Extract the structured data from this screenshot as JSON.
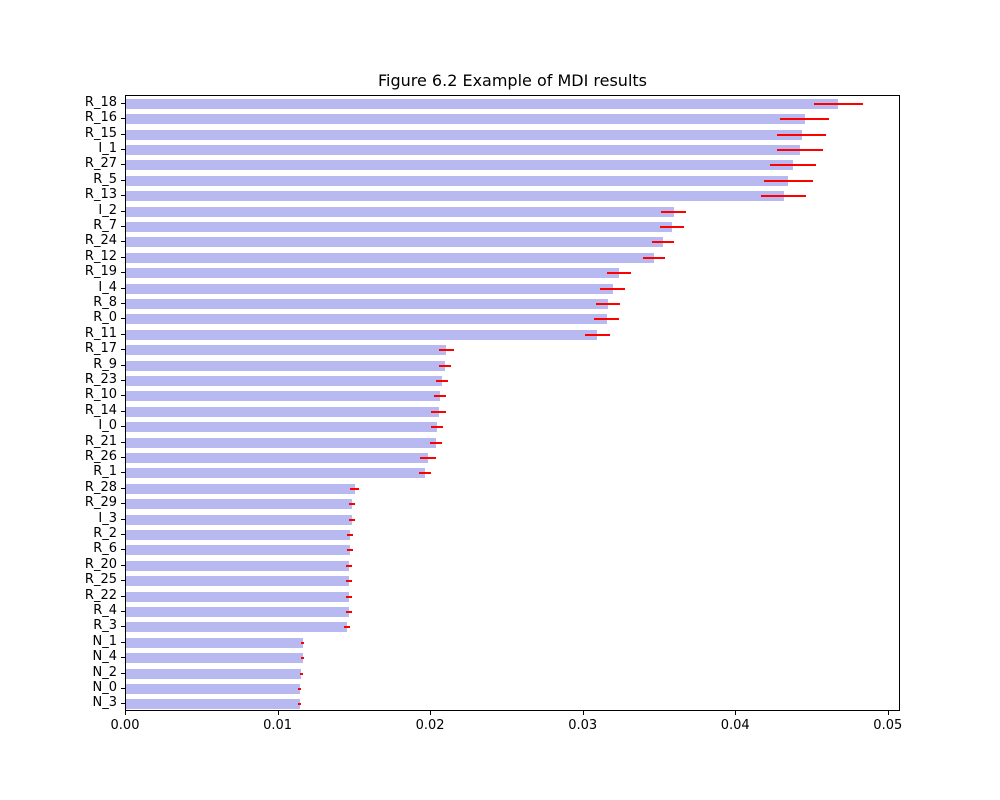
{
  "chart_data": {
    "type": "bar",
    "orientation": "horizontal",
    "title": "Figure 6.2 Example of MDI results",
    "xlabel": "",
    "ylabel": "",
    "grid": false,
    "legend": null,
    "xlim": [
      0,
      0.0508
    ],
    "xticks": [
      0.0,
      0.01,
      0.02,
      0.03,
      0.04,
      0.05
    ],
    "xtick_labels": [
      "0.00",
      "0.01",
      "0.02",
      "0.03",
      "0.04",
      "0.05"
    ],
    "bar_color": "#b9b9f2",
    "error_color": "#ff0000",
    "categories": [
      "R_18",
      "R_16",
      "R_15",
      "I_1",
      "R_27",
      "R_5",
      "R_13",
      "I_2",
      "R_7",
      "R_24",
      "R_12",
      "R_19",
      "I_4",
      "R_8",
      "R_0",
      "R_11",
      "R_17",
      "R_9",
      "R_23",
      "R_10",
      "R_14",
      "I_0",
      "R_21",
      "R_26",
      "R_1",
      "R_28",
      "R_29",
      "I_3",
      "R_2",
      "R_6",
      "R_20",
      "R_25",
      "R_22",
      "R_4",
      "R_3",
      "N_1",
      "N_4",
      "N_2",
      "N_0",
      "N_3"
    ],
    "values": [
      0.0467,
      0.0445,
      0.0443,
      0.0442,
      0.0437,
      0.0434,
      0.0431,
      0.0359,
      0.0358,
      0.0352,
      0.0346,
      0.0323,
      0.0319,
      0.0316,
      0.0315,
      0.0309,
      0.021,
      0.0209,
      0.0207,
      0.0206,
      0.0205,
      0.0204,
      0.0203,
      0.0198,
      0.0196,
      0.015,
      0.0148,
      0.0148,
      0.0147,
      0.0147,
      0.0146,
      0.0146,
      0.0146,
      0.0146,
      0.0145,
      0.0116,
      0.0116,
      0.0115,
      0.0114,
      0.0114
    ],
    "errors": [
      0.0016,
      0.0016,
      0.0016,
      0.0015,
      0.0015,
      0.0016,
      0.0015,
      0.0008,
      0.0008,
      0.0007,
      0.0007,
      0.0008,
      0.0008,
      0.0008,
      0.0008,
      0.0008,
      0.0005,
      0.0004,
      0.0004,
      0.0004,
      0.0005,
      0.0004,
      0.0004,
      0.0005,
      0.0004,
      0.0003,
      0.0002,
      0.0002,
      0.0002,
      0.0002,
      0.0002,
      0.0002,
      0.0002,
      0.0002,
      0.0002,
      0.0001,
      0.0001,
      0.0001,
      0.0001,
      0.0001
    ]
  }
}
